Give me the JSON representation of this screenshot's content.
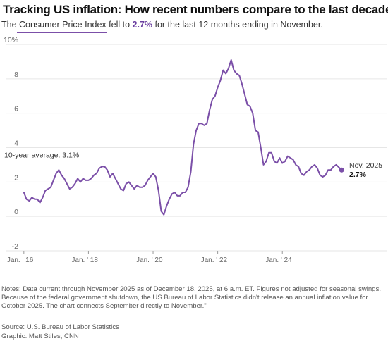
{
  "title": "Tracking US inflation: How recent numbers compare to the last decade",
  "subtitle": {
    "prefix": "The ",
    "link": "Consumer Price Index",
    "middle": " fell to ",
    "value": "2.7%",
    "suffix": " for the last 12 months ending in November."
  },
  "colors": {
    "line": "#7b4fa8",
    "accent": "#6b3fa0",
    "grid": "#e6e6e6",
    "average": "#777777"
  },
  "chart_data": {
    "type": "line",
    "title": "Tracking US inflation: How recent numbers compare to the last decade",
    "xlabel": "",
    "ylabel": "",
    "ylim": [
      -2,
      10
    ],
    "xlim": [
      "2015-12",
      "2025-12"
    ],
    "y_ticks": [
      -2,
      0,
      2,
      4,
      6,
      8,
      10
    ],
    "y_tick_labels": [
      "-2",
      "0",
      "2",
      "4",
      "6",
      "8",
      "10%"
    ],
    "x_ticks": [
      "2016-01",
      "2018-01",
      "2020-01",
      "2022-01",
      "2024-01"
    ],
    "x_tick_labels": [
      "Jan. ' 16",
      "Jan. ' 18",
      "Jan. ' 20",
      "Jan. ' 22",
      "Jan. ' 24"
    ],
    "grid": true,
    "average": {
      "value": 3.1,
      "label": "10-year average: 3.1%"
    },
    "end_label": {
      "date": "Nov. 2025",
      "value": "2.7%"
    },
    "series": [
      {
        "name": "CPI",
        "x": [
          "2016-01",
          "2016-02",
          "2016-03",
          "2016-04",
          "2016-05",
          "2016-06",
          "2016-07",
          "2016-08",
          "2016-09",
          "2016-10",
          "2016-11",
          "2016-12",
          "2017-01",
          "2017-02",
          "2017-03",
          "2017-04",
          "2017-05",
          "2017-06",
          "2017-07",
          "2017-08",
          "2017-09",
          "2017-10",
          "2017-11",
          "2017-12",
          "2018-01",
          "2018-02",
          "2018-03",
          "2018-04",
          "2018-05",
          "2018-06",
          "2018-07",
          "2018-08",
          "2018-09",
          "2018-10",
          "2018-11",
          "2018-12",
          "2019-01",
          "2019-02",
          "2019-03",
          "2019-04",
          "2019-05",
          "2019-06",
          "2019-07",
          "2019-08",
          "2019-09",
          "2019-10",
          "2019-11",
          "2019-12",
          "2020-01",
          "2020-02",
          "2020-03",
          "2020-04",
          "2020-05",
          "2020-06",
          "2020-07",
          "2020-08",
          "2020-09",
          "2020-10",
          "2020-11",
          "2020-12",
          "2021-01",
          "2021-02",
          "2021-03",
          "2021-04",
          "2021-05",
          "2021-06",
          "2021-07",
          "2021-08",
          "2021-09",
          "2021-10",
          "2021-11",
          "2021-12",
          "2022-01",
          "2022-02",
          "2022-03",
          "2022-04",
          "2022-05",
          "2022-06",
          "2022-07",
          "2022-08",
          "2022-09",
          "2022-10",
          "2022-11",
          "2022-12",
          "2023-01",
          "2023-02",
          "2023-03",
          "2023-04",
          "2023-05",
          "2023-06",
          "2023-07",
          "2023-08",
          "2023-09",
          "2023-10",
          "2023-11",
          "2023-12",
          "2024-01",
          "2024-02",
          "2024-03",
          "2024-04",
          "2024-05",
          "2024-06",
          "2024-07",
          "2024-08",
          "2024-09",
          "2024-10",
          "2024-11",
          "2024-12",
          "2025-01",
          "2025-02",
          "2025-03",
          "2025-04",
          "2025-05",
          "2025-06",
          "2025-07",
          "2025-08",
          "2025-09",
          "2025-11"
        ],
        "values": [
          1.4,
          1.0,
          0.9,
          1.1,
          1.0,
          1.0,
          0.8,
          1.1,
          1.5,
          1.6,
          1.7,
          2.1,
          2.5,
          2.7,
          2.4,
          2.2,
          1.9,
          1.6,
          1.7,
          1.9,
          2.2,
          2.0,
          2.2,
          2.1,
          2.1,
          2.2,
          2.4,
          2.5,
          2.8,
          2.9,
          2.9,
          2.7,
          2.3,
          2.5,
          2.2,
          1.9,
          1.6,
          1.5,
          1.9,
          2.0,
          1.8,
          1.6,
          1.8,
          1.7,
          1.7,
          1.8,
          2.1,
          2.3,
          2.5,
          2.3,
          1.5,
          0.3,
          0.1,
          0.6,
          1.0,
          1.3,
          1.4,
          1.2,
          1.2,
          1.4,
          1.4,
          1.7,
          2.6,
          4.2,
          5.0,
          5.4,
          5.4,
          5.3,
          5.4,
          6.2,
          6.8,
          7.0,
          7.5,
          7.9,
          8.5,
          8.3,
          8.6,
          9.1,
          8.5,
          8.3,
          8.2,
          7.7,
          7.1,
          6.5,
          6.4,
          6.0,
          5.0,
          4.9,
          4.0,
          3.0,
          3.2,
          3.7,
          3.7,
          3.2,
          3.1,
          3.4,
          3.1,
          3.2,
          3.5,
          3.4,
          3.3,
          3.0,
          2.9,
          2.5,
          2.4,
          2.6,
          2.7,
          2.9,
          3.0,
          2.8,
          2.4,
          2.3,
          2.4,
          2.7,
          2.7,
          2.9,
          3.0,
          2.7
        ]
      }
    ]
  },
  "notes": "Notes: Data current through November 2025 as of December 18, 2025, at 6 a.m. ET. Figures not adjusted for seasonal swings. Because of the federal government shutdown, the US Bureau of Labor Statistics didn't release an annual inflation value for October 2025. The chart connects September directly to November.\"",
  "source": "Source: U.S. Bureau of Labor Statistics",
  "credit": "Graphic: Matt Stiles, CNN"
}
